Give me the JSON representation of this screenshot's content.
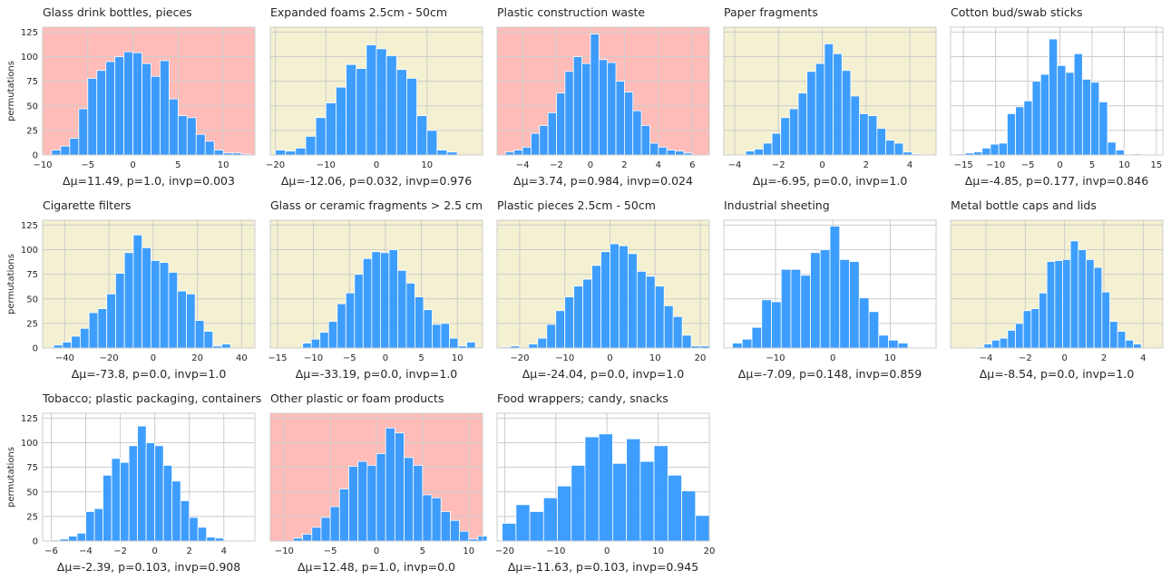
{
  "y_axis_label": "permutations",
  "colors": {
    "bar": "#3399ff",
    "background_red": "#ffbcb8",
    "background_yellow": "#f4f1d2",
    "background_white": "#ffffff",
    "grid": "#cccccc",
    "text": "#262626"
  },
  "chart_data": [
    {
      "type": "bar",
      "title": "Glass drink bottles, pieces",
      "xlabel": "Δμ=11.49, p=1.0, invp=0.003",
      "background": "red",
      "xlim": [
        -10,
        13.5
      ],
      "ylim": [
        0,
        130
      ],
      "xticks": [
        -10,
        -5,
        0,
        5,
        10
      ],
      "yticks": [
        0,
        25,
        50,
        75,
        100,
        125
      ],
      "bin_start": -9,
      "bin_width": 1,
      "values": [
        5,
        9,
        17,
        47,
        78,
        86,
        95,
        100,
        105,
        104,
        93,
        80,
        96,
        57,
        40,
        38,
        21,
        14,
        5,
        2,
        2,
        1
      ]
    },
    {
      "type": "bar",
      "title": "Expanded foams 2.5cm - 50cm",
      "xlabel": "Δμ=-12.06, p=0.032, invp=0.976",
      "background": "yellow",
      "xlim": [
        -21,
        21
      ],
      "ylim": [
        0,
        130
      ],
      "xticks": [
        -20,
        -10,
        0,
        10
      ],
      "yticks": [
        0,
        25,
        50,
        75,
        100,
        125
      ],
      "bin_start": -20,
      "bin_width": 2,
      "values": [
        5,
        4,
        7,
        19,
        38,
        53,
        69,
        92,
        88,
        112,
        108,
        101,
        87,
        78,
        40,
        25,
        5,
        3
      ]
    },
    {
      "type": "bar",
      "title": "Plastic construction waste",
      "xlabel": "Δμ=3.74, p=0.984, invp=0.024",
      "background": "red",
      "xlim": [
        -5.5,
        7
      ],
      "ylim": [
        0,
        130
      ],
      "xticks": [
        -4,
        -2,
        0,
        2,
        4,
        6
      ],
      "yticks": [
        0,
        25,
        50,
        75,
        100,
        125
      ],
      "bin_start": -5,
      "bin_width": 0.5,
      "values": [
        3,
        5,
        8,
        22,
        30,
        43,
        63,
        85,
        100,
        93,
        123,
        97,
        94,
        75,
        64,
        45,
        30,
        12,
        8,
        5,
        4,
        2
      ]
    },
    {
      "type": "bar",
      "title": "Paper fragments",
      "xlabel": "Δμ=-6.95, p=0.0, invp=1.0",
      "background": "yellow",
      "xlim": [
        -4.5,
        5.2
      ],
      "ylim": [
        0,
        130
      ],
      "xticks": [
        -4,
        -2,
        0,
        2,
        4
      ],
      "yticks": [
        0,
        25,
        50,
        75,
        100,
        125
      ],
      "bin_start": -3.5,
      "bin_width": 0.4,
      "values": [
        4,
        6,
        12,
        22,
        38,
        47,
        63,
        85,
        93,
        113,
        103,
        86,
        60,
        42,
        40,
        27,
        15,
        12,
        3,
        1
      ]
    },
    {
      "type": "bar",
      "title": "Cotton bud/swab sticks",
      "xlabel": "Δμ=-4.85, p=0.177, invp=0.846",
      "background": "white",
      "xlim": [
        -17,
        16
      ],
      "ylim": [
        0,
        130
      ],
      "xticks": [
        -15,
        -10,
        -5,
        0,
        5,
        10,
        15
      ],
      "yticks": [
        0,
        25,
        50,
        75,
        100,
        125
      ],
      "bin_start": -16,
      "bin_width": 1.3,
      "values": [
        1,
        2,
        3,
        7,
        11,
        12,
        42,
        49,
        55,
        75,
        82,
        118,
        91,
        84,
        103,
        77,
        74,
        54,
        13,
        5,
        0,
        1
      ]
    },
    {
      "type": "bar",
      "title": "Cigarette filters",
      "xlabel": "Δμ=-73.8, p=0.0, invp=1.0",
      "background": "yellow",
      "xlim": [
        -50,
        46
      ],
      "ylim": [
        0,
        130
      ],
      "xticks": [
        -40,
        -20,
        0,
        20,
        40
      ],
      "yticks": [
        0,
        25,
        50,
        75,
        100,
        125
      ],
      "bin_start": -45,
      "bin_width": 4,
      "values": [
        3,
        6,
        12,
        20,
        36,
        40,
        55,
        76,
        97,
        115,
        102,
        89,
        87,
        77,
        58,
        55,
        28,
        17,
        2,
        4
      ]
    },
    {
      "type": "bar",
      "title": "Glass or ceramic fragments > 2.5 cm",
      "xlabel": "Δμ=-33.19, p=0.0, invp=1.0",
      "background": "yellow",
      "xlim": [
        -16,
        13.5
      ],
      "ylim": [
        0,
        130
      ],
      "xticks": [
        -15,
        -10,
        -5,
        0,
        5,
        10
      ],
      "yticks": [
        0,
        25,
        50,
        75,
        100,
        125
      ],
      "bin_start": -11.5,
      "bin_width": 1.2,
      "values": [
        5,
        9,
        16,
        27,
        45,
        56,
        75,
        91,
        98,
        97,
        100,
        79,
        66,
        52,
        39,
        24,
        25,
        10,
        2,
        6
      ]
    },
    {
      "type": "bar",
      "title": "Plastic pieces 2.5cm - 50cm",
      "xlabel": "Δμ=-24.04, p=0.0, invp=1.0",
      "background": "yellow",
      "xlim": [
        -25,
        22
      ],
      "ylim": [
        0,
        130
      ],
      "xticks": [
        -20,
        -10,
        0,
        10,
        20
      ],
      "yticks": [
        0,
        25,
        50,
        75,
        100,
        125
      ],
      "bin_start": -24,
      "bin_width": 2,
      "values": [
        1,
        2,
        0,
        4,
        10,
        24,
        38,
        52,
        63,
        70,
        84,
        98,
        106,
        104,
        96,
        78,
        73,
        63,
        43,
        32,
        13,
        2,
        2
      ]
    },
    {
      "type": "bar",
      "title": "Industrial sheeting",
      "xlabel": "Δμ=-7.09, p=0.148, invp=0.859",
      "background": "white",
      "xlim": [
        -19,
        18
      ],
      "ylim": [
        0,
        130
      ],
      "xticks": [
        -10,
        0,
        10
      ],
      "yticks": [
        0,
        25,
        50,
        75,
        100,
        125
      ],
      "bin_start": -17.5,
      "bin_width": 1.7,
      "values": [
        5,
        9,
        21,
        49,
        47,
        80,
        80,
        74,
        97,
        100,
        124,
        90,
        88,
        51,
        37,
        13,
        8,
        5
      ]
    },
    {
      "type": "bar",
      "title": "Metal bottle caps and lids",
      "xlabel": "Δμ=-8.54, p=0.0, invp=1.0",
      "background": "yellow",
      "xlim": [
        -5.8,
        5
      ],
      "ylim": [
        0,
        130
      ],
      "xticks": [
        -4,
        -2,
        0,
        2,
        4
      ],
      "yticks": [
        0,
        25,
        50,
        75,
        100,
        125
      ],
      "bin_start": -4.5,
      "bin_width": 0.4,
      "values": [
        1,
        4,
        8,
        10,
        18,
        25,
        38,
        40,
        56,
        88,
        89,
        90,
        109,
        100,
        90,
        82,
        57,
        27,
        17,
        8,
        4
      ]
    },
    {
      "type": "bar",
      "title": "Tobacco; plastic packaging, containers",
      "xlabel": "Δμ=-2.39, p=0.103, invp=0.908",
      "background": "white",
      "xlim": [
        -6.5,
        5.8
      ],
      "ylim": [
        0,
        130
      ],
      "xticks": [
        -6,
        -4,
        -2,
        0,
        2,
        4
      ],
      "yticks": [
        0,
        25,
        50,
        75,
        100,
        125
      ],
      "bin_start": -6,
      "bin_width": 0.5,
      "values": [
        1,
        2,
        5,
        8,
        30,
        33,
        67,
        84,
        80,
        97,
        117,
        100,
        97,
        77,
        61,
        41,
        24,
        14,
        4,
        3
      ]
    },
    {
      "type": "bar",
      "title": "Other plastic or foam products",
      "xlabel": "Δμ=12.48, p=1.0, invp=0.0",
      "background": "red",
      "xlim": [
        -11.5,
        11.5
      ],
      "ylim": [
        0,
        130
      ],
      "xticks": [
        -10,
        -5,
        0,
        5,
        10
      ],
      "yticks": [
        0,
        25,
        50,
        75,
        100,
        125
      ],
      "bin_start": -11,
      "bin_width": 1,
      "values": [
        0,
        0,
        3,
        7,
        14,
        24,
        35,
        53,
        76,
        81,
        77,
        89,
        115,
        110,
        85,
        77,
        47,
        44,
        30,
        21,
        10,
        2,
        5
      ]
    },
    {
      "type": "bar",
      "title": "Food wrappers; candy, snacks",
      "xlabel": "Δμ=-11.63, p=0.103, invp=0.945",
      "background": "white",
      "xlim": [
        -21.5,
        20
      ],
      "ylim": [
        0,
        130
      ],
      "xticks": [
        -20,
        -10,
        0,
        10,
        20
      ],
      "yticks": [
        0,
        25,
        50,
        75,
        100,
        125
      ],
      "bin_start": -20.5,
      "bin_width": 2.7,
      "values": [
        18,
        37,
        30,
        44,
        56,
        77,
        106,
        109,
        79,
        104,
        81,
        97,
        67,
        51,
        26
      ]
    }
  ]
}
